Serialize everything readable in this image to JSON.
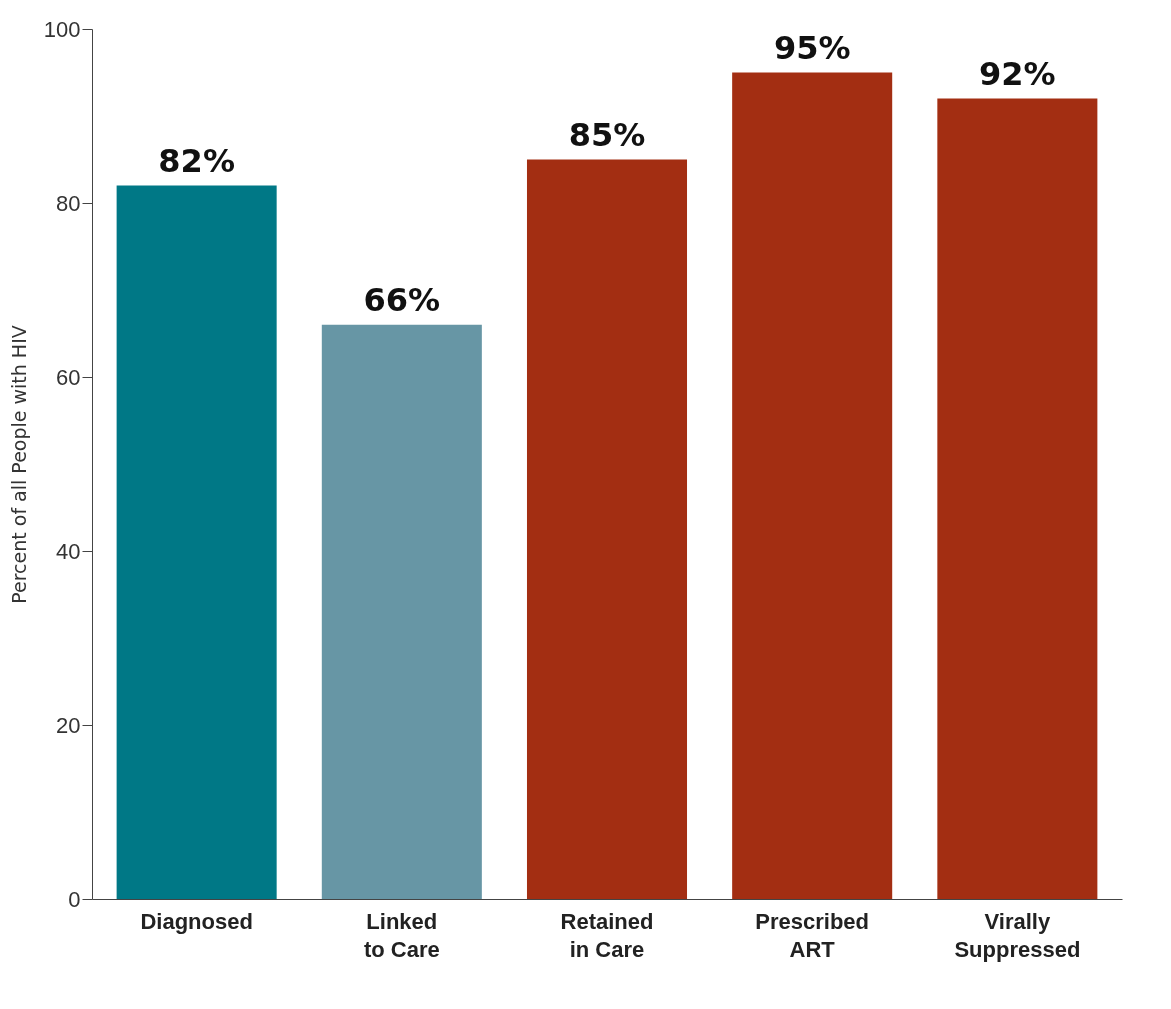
{
  "chart_data": {
    "type": "bar",
    "ylabel": "Percent of all People with HIV",
    "categories": [
      "Diagnosed",
      "Linked to Care",
      "Retained in Care",
      "Prescribed ART",
      "Virally Suppressed"
    ],
    "values": [
      82,
      66,
      85,
      95,
      92
    ],
    "colors": [
      "#007886",
      "#6796a5",
      "#a32e12",
      "#a32e12",
      "#a32e12"
    ],
    "value_labels": [
      "82%",
      "66%",
      "85%",
      "95%",
      "92%"
    ],
    "ylim": [
      0,
      100
    ],
    "yticks": [
      0,
      20,
      40,
      60,
      80,
      100
    ],
    "grid": false
  }
}
